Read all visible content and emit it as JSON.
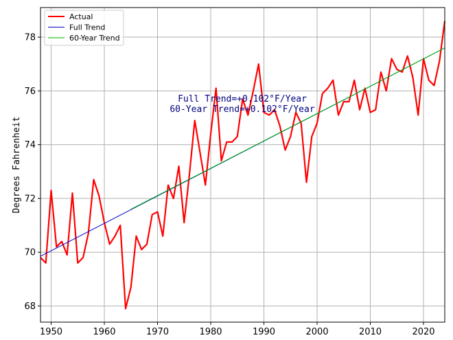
{
  "chart_data": {
    "type": "line",
    "title": "",
    "xlabel": "",
    "ylabel": "Degrees Fahrenheit",
    "xlim": [
      1948,
      2024
    ],
    "ylim": [
      67.4,
      79.1
    ],
    "xticks": [
      1950,
      1960,
      1970,
      1980,
      1990,
      2000,
      2010,
      2020
    ],
    "yticks": [
      68,
      70,
      72,
      74,
      76,
      78
    ],
    "grid": true,
    "legend": "top-left",
    "annotation": {
      "lines": [
        "Full Trend=+0.102°F/Year",
        "60-Year Trend=+0.102°F/Year"
      ],
      "color": "#000080"
    },
    "series": [
      {
        "name": "Actual",
        "color": "#ff0000",
        "x": [
          1948,
          1949,
          1950,
          1951,
          1952,
          1953,
          1954,
          1955,
          1956,
          1957,
          1958,
          1959,
          1960,
          1961,
          1962,
          1963,
          1964,
          1965,
          1966,
          1967,
          1968,
          1969,
          1970,
          1971,
          1972,
          1973,
          1974,
          1975,
          1976,
          1977,
          1978,
          1979,
          1980,
          1981,
          1982,
          1983,
          1984,
          1985,
          1986,
          1987,
          1988,
          1989,
          1990,
          1991,
          1992,
          1993,
          1994,
          1995,
          1996,
          1997,
          1998,
          1999,
          2000,
          2001,
          2002,
          2003,
          2004,
          2005,
          2006,
          2007,
          2008,
          2009,
          2010,
          2011,
          2012,
          2013,
          2014,
          2015,
          2016,
          2017,
          2018,
          2019,
          2020,
          2021,
          2022,
          2023,
          2024
        ],
        "y": [
          69.8,
          69.6,
          72.3,
          70.2,
          70.4,
          69.9,
          72.2,
          69.6,
          69.8,
          70.7,
          72.7,
          72.1,
          71.1,
          70.3,
          70.6,
          71.0,
          67.9,
          68.7,
          70.6,
          70.1,
          70.3,
          71.4,
          71.5,
          70.6,
          72.5,
          72.0,
          73.2,
          71.1,
          72.9,
          74.9,
          73.7,
          72.5,
          74.4,
          76.1,
          73.4,
          74.1,
          74.1,
          74.3,
          75.7,
          75.1,
          76.0,
          77.0,
          75.2,
          75.1,
          75.3,
          74.7,
          73.8,
          74.3,
          75.2,
          74.8,
          72.6,
          74.3,
          74.8,
          75.9,
          76.1,
          76.4,
          75.1,
          75.6,
          75.6,
          76.4,
          75.3,
          76.1,
          75.2,
          75.3,
          76.7,
          76.0,
          77.2,
          76.8,
          76.7,
          77.3,
          76.5,
          75.1,
          77.2,
          76.4,
          76.2,
          77.1,
          78.6
        ]
      },
      {
        "name": "Full Trend",
        "color": "#0000cc",
        "x": [
          1948,
          2024
        ],
        "y": [
          69.85,
          77.6
        ]
      },
      {
        "name": "60-Year Trend",
        "color": "#00bb00",
        "x": [
          1965,
          2024
        ],
        "y": [
          71.6,
          77.6
        ]
      }
    ]
  }
}
